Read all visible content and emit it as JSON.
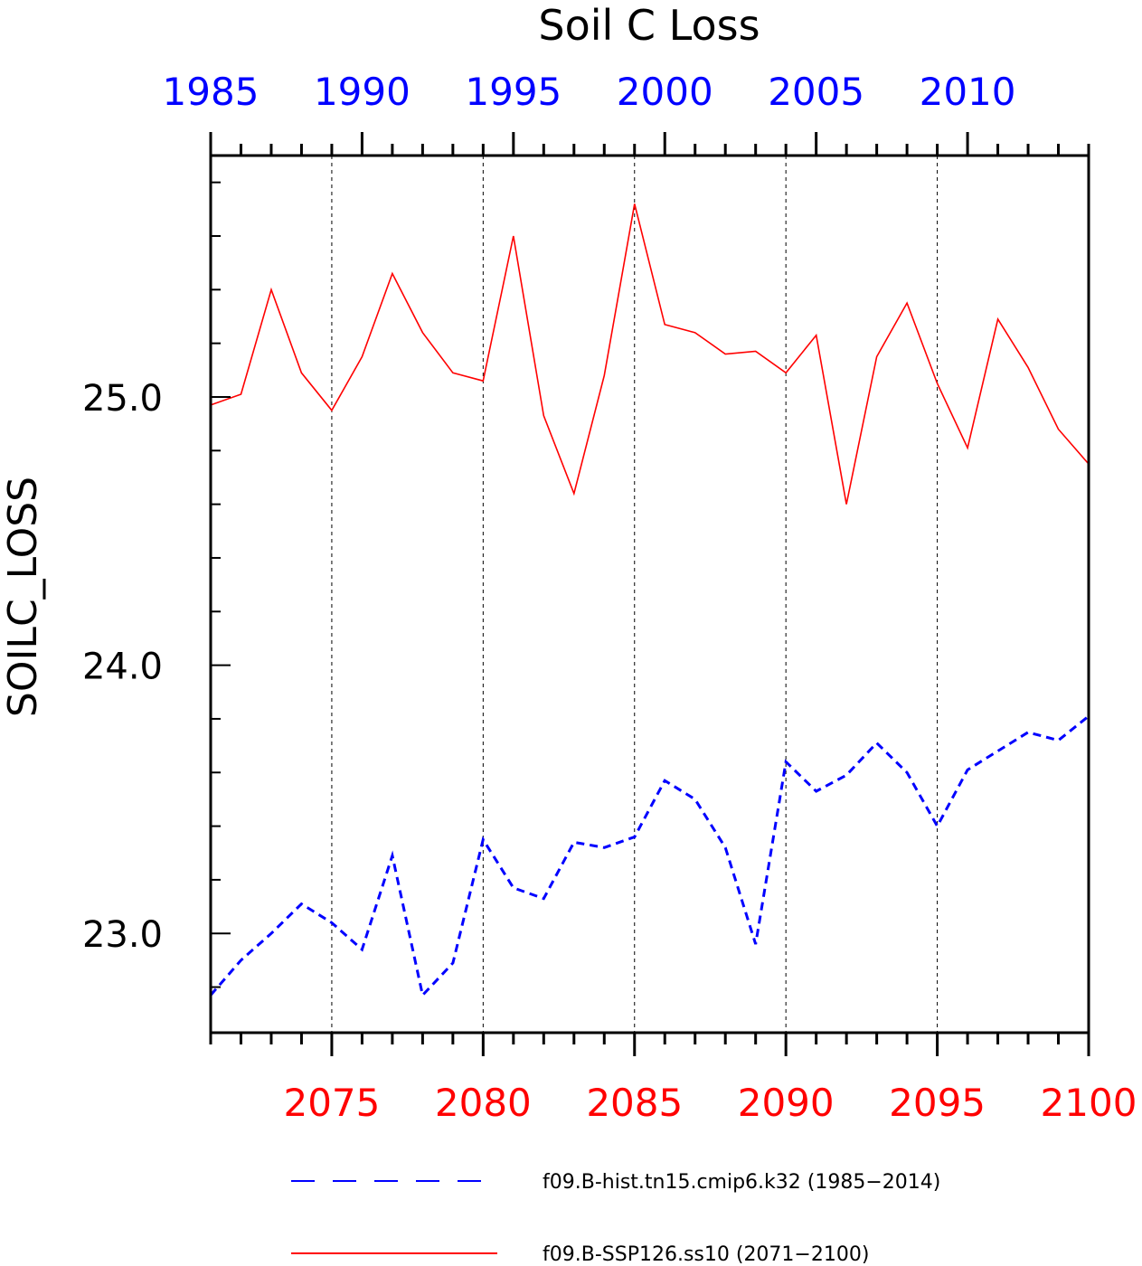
{
  "chart_data": {
    "type": "line",
    "title": "Soil C Loss",
    "ylabel": "SOILC_LOSS",
    "ylim": [
      22.63,
      25.9
    ],
    "yticks": [
      {
        "value": 23.0,
        "label": "23.0"
      },
      {
        "value": 24.0,
        "label": "24.0"
      },
      {
        "value": 25.0,
        "label": "25.0"
      }
    ],
    "x_top": {
      "range": [
        1985,
        2014
      ],
      "color": "#0000ff",
      "ticks": [
        {
          "value": 1985,
          "label": "1985"
        },
        {
          "value": 1990,
          "label": "1990"
        },
        {
          "value": 1995,
          "label": "1995"
        },
        {
          "value": 2000,
          "label": "2000"
        },
        {
          "value": 2005,
          "label": "2005"
        },
        {
          "value": 2010,
          "label": "2010"
        }
      ]
    },
    "x_bottom": {
      "range": [
        2071,
        2100
      ],
      "color": "#ff0000",
      "ticks": [
        {
          "value": 2075,
          "label": "2075"
        },
        {
          "value": 2080,
          "label": "2080"
        },
        {
          "value": 2085,
          "label": "2085"
        },
        {
          "value": 2090,
          "label": "2090"
        },
        {
          "value": 2095,
          "label": "2095"
        },
        {
          "value": 2100,
          "label": "2100"
        }
      ]
    },
    "vertical_gridlines": true,
    "legend_position": "bottom",
    "series": [
      {
        "name": "f09.B-hist.tn15.cmip6.k32 (1985−2014)",
        "axis": "top",
        "color": "#0000ff",
        "style": "dashed",
        "x": [
          1985,
          1986,
          1987,
          1988,
          1989,
          1990,
          1991,
          1992,
          1993,
          1994,
          1995,
          1996,
          1997,
          1998,
          1999,
          2000,
          2001,
          2002,
          2003,
          2004,
          2005,
          2006,
          2007,
          2008,
          2009,
          2010,
          2011,
          2012,
          2013,
          2014
        ],
        "values": [
          22.77,
          22.9,
          23.0,
          23.11,
          23.04,
          22.94,
          23.29,
          22.77,
          22.89,
          23.35,
          23.17,
          23.13,
          23.34,
          23.32,
          23.36,
          23.57,
          23.5,
          23.32,
          22.96,
          23.64,
          23.53,
          23.59,
          23.71,
          23.6,
          23.4,
          23.61,
          23.68,
          23.75,
          23.72,
          23.81
        ]
      },
      {
        "name": "f09.B-SSP126.ss10 (2071−2100)",
        "axis": "bottom",
        "color": "#ff0000",
        "style": "solid",
        "x": [
          2071,
          2072,
          2073,
          2074,
          2075,
          2076,
          2077,
          2078,
          2079,
          2080,
          2081,
          2082,
          2083,
          2084,
          2085,
          2086,
          2087,
          2088,
          2089,
          2090,
          2091,
          2092,
          2093,
          2094,
          2095,
          2096,
          2097,
          2098,
          2099,
          2100
        ],
        "values": [
          24.97,
          25.01,
          25.4,
          25.09,
          24.95,
          25.15,
          25.46,
          25.24,
          25.09,
          25.06,
          25.6,
          24.93,
          24.64,
          25.08,
          25.72,
          25.27,
          25.24,
          25.16,
          25.17,
          25.09,
          25.23,
          24.6,
          25.15,
          25.35,
          25.05,
          24.81,
          25.29,
          25.11,
          24.88,
          24.75
        ]
      }
    ]
  }
}
